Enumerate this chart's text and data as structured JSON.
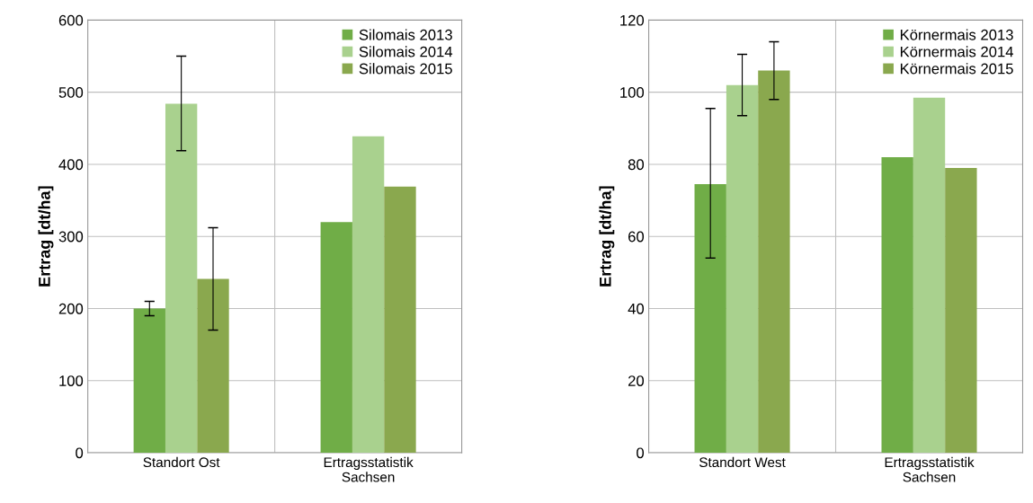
{
  "chart_data": [
    {
      "type": "bar",
      "ylabel": "Ertrag [dt/ha]",
      "categories": [
        "Standort Ost",
        "Ertragsstatistik\nSachsen"
      ],
      "ylim": [
        0,
        600
      ],
      "yticks": [
        0,
        100,
        200,
        300,
        400,
        500,
        600
      ],
      "grid": true,
      "legend": "top right",
      "series": [
        {
          "name": "Silomais 2013",
          "color": "#70ad47",
          "values": [
            200,
            320
          ],
          "errors": [
            [
              190,
              210
            ],
            null
          ]
        },
        {
          "name": "Silomais 2014",
          "color": "#a9d18e",
          "values": [
            484,
            439
          ],
          "errors": [
            [
              419,
              550
            ],
            null
          ]
        },
        {
          "name": "Silomais 2015",
          "color": "#8aa84e",
          "values": [
            241,
            369
          ],
          "errors": [
            [
              170,
              312
            ],
            null
          ]
        }
      ]
    },
    {
      "type": "bar",
      "ylabel": "Ertrag [dt/ha]",
      "categories": [
        "Standort West",
        "Ertragsstatistik\nSachsen"
      ],
      "ylim": [
        0,
        120
      ],
      "yticks": [
        0,
        20,
        40,
        60,
        80,
        100,
        120
      ],
      "grid": true,
      "legend": "top right",
      "series": [
        {
          "name": "Körnermais 2013",
          "color": "#70ad47",
          "values": [
            74.5,
            82
          ],
          "errors": [
            [
              54,
              95.5
            ],
            null
          ]
        },
        {
          "name": "Körnermais 2014",
          "color": "#a9d18e",
          "values": [
            102,
            98.5
          ],
          "errors": [
            [
              93.5,
              110.5
            ],
            null
          ]
        },
        {
          "name": "Körnermais 2015",
          "color": "#8aa84e",
          "values": [
            106,
            79
          ],
          "errors": [
            [
              98,
              114
            ],
            null
          ]
        }
      ]
    }
  ]
}
